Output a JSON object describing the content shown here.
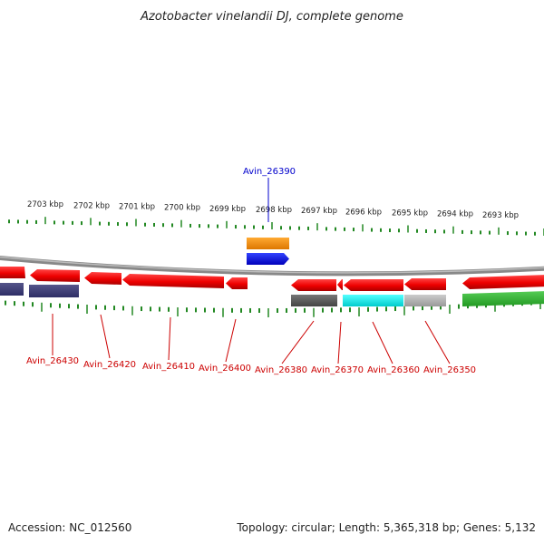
{
  "title": "Azotobacter vinelandii DJ, complete genome",
  "footer": {
    "accession": "Accession: NC_012560",
    "summary": "Topology: circular; Length: 5,365,318 bp; Genes: 5,132"
  },
  "colors": {
    "forward_label": "#cc0000",
    "highlight_label": "#0000cc",
    "ticks": "#228822",
    "backbone": "#888888"
  },
  "ticks": [
    {
      "label": "2703 kbp"
    },
    {
      "label": "2702 kbp"
    },
    {
      "label": "2701 kbp"
    },
    {
      "label": "2700 kbp"
    },
    {
      "label": "2699 kbp"
    },
    {
      "label": "2698 kbp"
    },
    {
      "label": "2697 kbp"
    },
    {
      "label": "2696 kbp"
    },
    {
      "label": "2695 kbp"
    },
    {
      "label": "2694 kbp"
    },
    {
      "label": "2693 kbp"
    }
  ],
  "genes": [
    {
      "name": "Avin_26390",
      "color": "#0000cc"
    },
    {
      "name": "Avin_26430",
      "color": "#cc0000"
    },
    {
      "name": "Avin_26420",
      "color": "#cc0000"
    },
    {
      "name": "Avin_26410",
      "color": "#cc0000"
    },
    {
      "name": "Avin_26400",
      "color": "#cc0000"
    },
    {
      "name": "Avin_26380",
      "color": "#cc0000"
    },
    {
      "name": "Avin_26370",
      "color": "#cc0000"
    },
    {
      "name": "Avin_26360",
      "color": "#cc0000"
    },
    {
      "name": "Avin_26350",
      "color": "#cc0000"
    }
  ]
}
